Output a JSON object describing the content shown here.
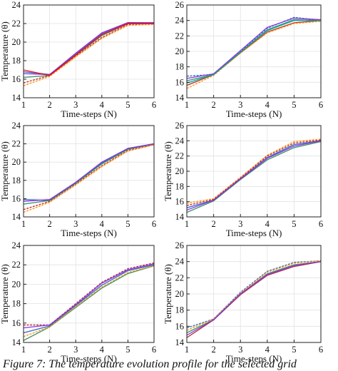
{
  "caption": {
    "label": "Figure 7:",
    "text": "The temperature evolution profile for the selected grid"
  },
  "chart_data": [
    {
      "type": "line",
      "panel": "top-left",
      "xlabel": "Time-steps (N)",
      "ylabel": "Temperature (θ)",
      "xlim": [
        1,
        6
      ],
      "ylim": [
        14,
        24
      ],
      "xticks": [
        1,
        2,
        3,
        4,
        5,
        6
      ],
      "yticks": [
        14,
        16,
        18,
        20,
        22,
        24
      ],
      "x": [
        1,
        2,
        3,
        4,
        5,
        6
      ],
      "series": [
        {
          "values": [
            15.6,
            16.4,
            18.5,
            20.5,
            21.9,
            22.0
          ],
          "color": "#b22222"
        },
        {
          "values": [
            16.8,
            16.5,
            18.7,
            20.9,
            22.1,
            22.0
          ],
          "color": "#2060c0"
        },
        {
          "values": [
            16.2,
            16.4,
            18.6,
            20.7,
            22.0,
            22.0
          ],
          "color": "#2e8b57"
        },
        {
          "values": [
            15.3,
            16.3,
            18.4,
            20.4,
            21.8,
            21.9
          ],
          "color": "#ff8c00"
        },
        {
          "values": [
            16.6,
            16.5,
            18.8,
            21.0,
            22.1,
            22.1
          ],
          "color": "#8a2be2"
        },
        {
          "values": [
            17.0,
            16.4,
            18.6,
            20.8,
            22.0,
            22.0
          ],
          "color": "#ff0000"
        }
      ]
    },
    {
      "type": "line",
      "panel": "top-right",
      "xlabel": "Time-steps (N)",
      "ylabel": "",
      "xlim": [
        1,
        6
      ],
      "ylim": [
        14,
        26
      ],
      "xticks": [
        1,
        2,
        3,
        4,
        5,
        6
      ],
      "yticks": [
        14,
        16,
        18,
        20,
        22,
        24,
        26
      ],
      "x": [
        1,
        2,
        3,
        4,
        5,
        6
      ],
      "series": [
        {
          "values": [
            16.8,
            17.0,
            20.0,
            23.0,
            24.4,
            24.0
          ],
          "color": "#2060c0"
        },
        {
          "values": [
            15.6,
            17.0,
            19.8,
            22.5,
            23.7,
            24.0
          ],
          "color": "#b22222"
        },
        {
          "values": [
            16.2,
            17.0,
            19.9,
            22.8,
            24.1,
            24.0
          ],
          "color": "#2e8b57"
        },
        {
          "values": [
            15.2,
            16.9,
            19.8,
            22.4,
            23.6,
            23.9
          ],
          "color": "#ff8c00"
        },
        {
          "values": [
            16.5,
            17.1,
            20.1,
            23.1,
            24.3,
            24.1
          ],
          "color": "#8a2be2"
        },
        {
          "values": [
            15.9,
            17.0,
            19.9,
            22.7,
            24.0,
            24.0
          ],
          "color": "#00a0a0"
        }
      ]
    },
    {
      "type": "line",
      "panel": "middle-left",
      "xlabel": "Time-steps (N)",
      "ylabel": "Temperature (θ)",
      "xlim": [
        1,
        6
      ],
      "ylim": [
        14,
        24
      ],
      "xticks": [
        1,
        2,
        3,
        4,
        5,
        6
      ],
      "yticks": [
        14,
        16,
        18,
        20,
        22,
        24
      ],
      "x": [
        1,
        2,
        3,
        4,
        5,
        6
      ],
      "series": [
        {
          "values": [
            14.8,
            15.7,
            17.6,
            19.6,
            21.3,
            21.9
          ],
          "color": "#b22222"
        },
        {
          "values": [
            15.9,
            15.8,
            17.7,
            19.9,
            21.5,
            22.0
          ],
          "color": "#2060c0"
        },
        {
          "values": [
            15.4,
            15.8,
            17.7,
            19.8,
            21.4,
            22.0
          ],
          "color": "#2e8b57"
        },
        {
          "values": [
            14.5,
            15.6,
            17.5,
            19.5,
            21.2,
            21.9
          ],
          "color": "#ff8c00"
        },
        {
          "values": [
            15.7,
            15.9,
            17.8,
            20.0,
            21.5,
            22.0
          ],
          "color": "#8a2be2"
        }
      ]
    },
    {
      "type": "line",
      "panel": "middle-right",
      "xlabel": "Time-steps (N)",
      "ylabel": "Temperature (θ)",
      "xlim": [
        1,
        6
      ],
      "ylim": [
        14,
        26
      ],
      "xticks": [
        1,
        2,
        3,
        4,
        5,
        6
      ],
      "yticks": [
        14,
        16,
        18,
        20,
        22,
        24,
        26
      ],
      "x": [
        1,
        2,
        3,
        4,
        5,
        6
      ],
      "series": [
        {
          "values": [
            15.8,
            16.4,
            19.2,
            22.1,
            23.9,
            24.2
          ],
          "color": "#ff8c00"
        },
        {
          "values": [
            14.6,
            16.1,
            18.9,
            21.5,
            23.1,
            23.9
          ],
          "color": "#2e8b57"
        },
        {
          "values": [
            15.2,
            16.2,
            19.0,
            21.8,
            23.5,
            24.0
          ],
          "color": "#2060c0"
        },
        {
          "values": [
            15.5,
            16.3,
            19.1,
            22.0,
            23.7,
            24.1
          ],
          "color": "#b22222"
        },
        {
          "values": [
            14.9,
            16.2,
            19.0,
            21.7,
            23.3,
            24.0
          ],
          "color": "#8a2be2"
        }
      ]
    },
    {
      "type": "line",
      "panel": "bottom-left",
      "xlabel": "Time-steps (N)",
      "ylabel": "Temperature (θ)",
      "xlim": [
        1,
        6
      ],
      "ylim": [
        14,
        24
      ],
      "xticks": [
        1,
        2,
        3,
        4,
        5,
        6
      ],
      "yticks": [
        14,
        16,
        18,
        20,
        22,
        24
      ],
      "x": [
        1,
        2,
        3,
        4,
        5,
        6
      ],
      "series": [
        {
          "values": [
            15.8,
            15.8,
            18.0,
            20.2,
            21.6,
            22.2
          ],
          "color": "#b22222"
        },
        {
          "values": [
            14.2,
            15.6,
            17.6,
            19.6,
            21.1,
            21.9
          ],
          "color": "#2e8b57"
        },
        {
          "values": [
            15.0,
            15.7,
            17.8,
            19.9,
            21.4,
            22.0
          ],
          "color": "#2060c0"
        },
        {
          "values": [
            14.6,
            15.6,
            17.7,
            19.7,
            21.2,
            21.9
          ],
          "color": "#ff8c00"
        },
        {
          "values": [
            15.5,
            15.8,
            17.9,
            20.1,
            21.5,
            22.1
          ],
          "color": "#8a2be2"
        }
      ]
    },
    {
      "type": "line",
      "panel": "bottom-right",
      "xlabel": "Time-steps (N)",
      "ylabel": "Temperature (θ)",
      "xlim": [
        1,
        6
      ],
      "ylim": [
        14,
        26
      ],
      "xticks": [
        1,
        2,
        3,
        4,
        5,
        6
      ],
      "yticks": [
        14,
        16,
        18,
        20,
        22,
        24,
        26
      ],
      "x": [
        1,
        2,
        3,
        4,
        5,
        6
      ],
      "series": [
        {
          "values": [
            15.8,
            16.9,
            20.2,
            22.8,
            23.9,
            24.1
          ],
          "color": "#2060c0"
        },
        {
          "values": [
            14.6,
            16.8,
            19.9,
            22.3,
            23.4,
            24.0
          ],
          "color": "#b22222"
        },
        {
          "values": [
            15.2,
            16.8,
            20.0,
            22.5,
            23.6,
            24.0
          ],
          "color": "#2e8b57"
        },
        {
          "values": [
            15.5,
            16.9,
            20.1,
            22.7,
            23.8,
            24.1
          ],
          "color": "#ff8c00"
        },
        {
          "values": [
            14.9,
            16.8,
            20.0,
            22.4,
            23.5,
            24.0
          ],
          "color": "#8a2be2"
        }
      ]
    }
  ]
}
